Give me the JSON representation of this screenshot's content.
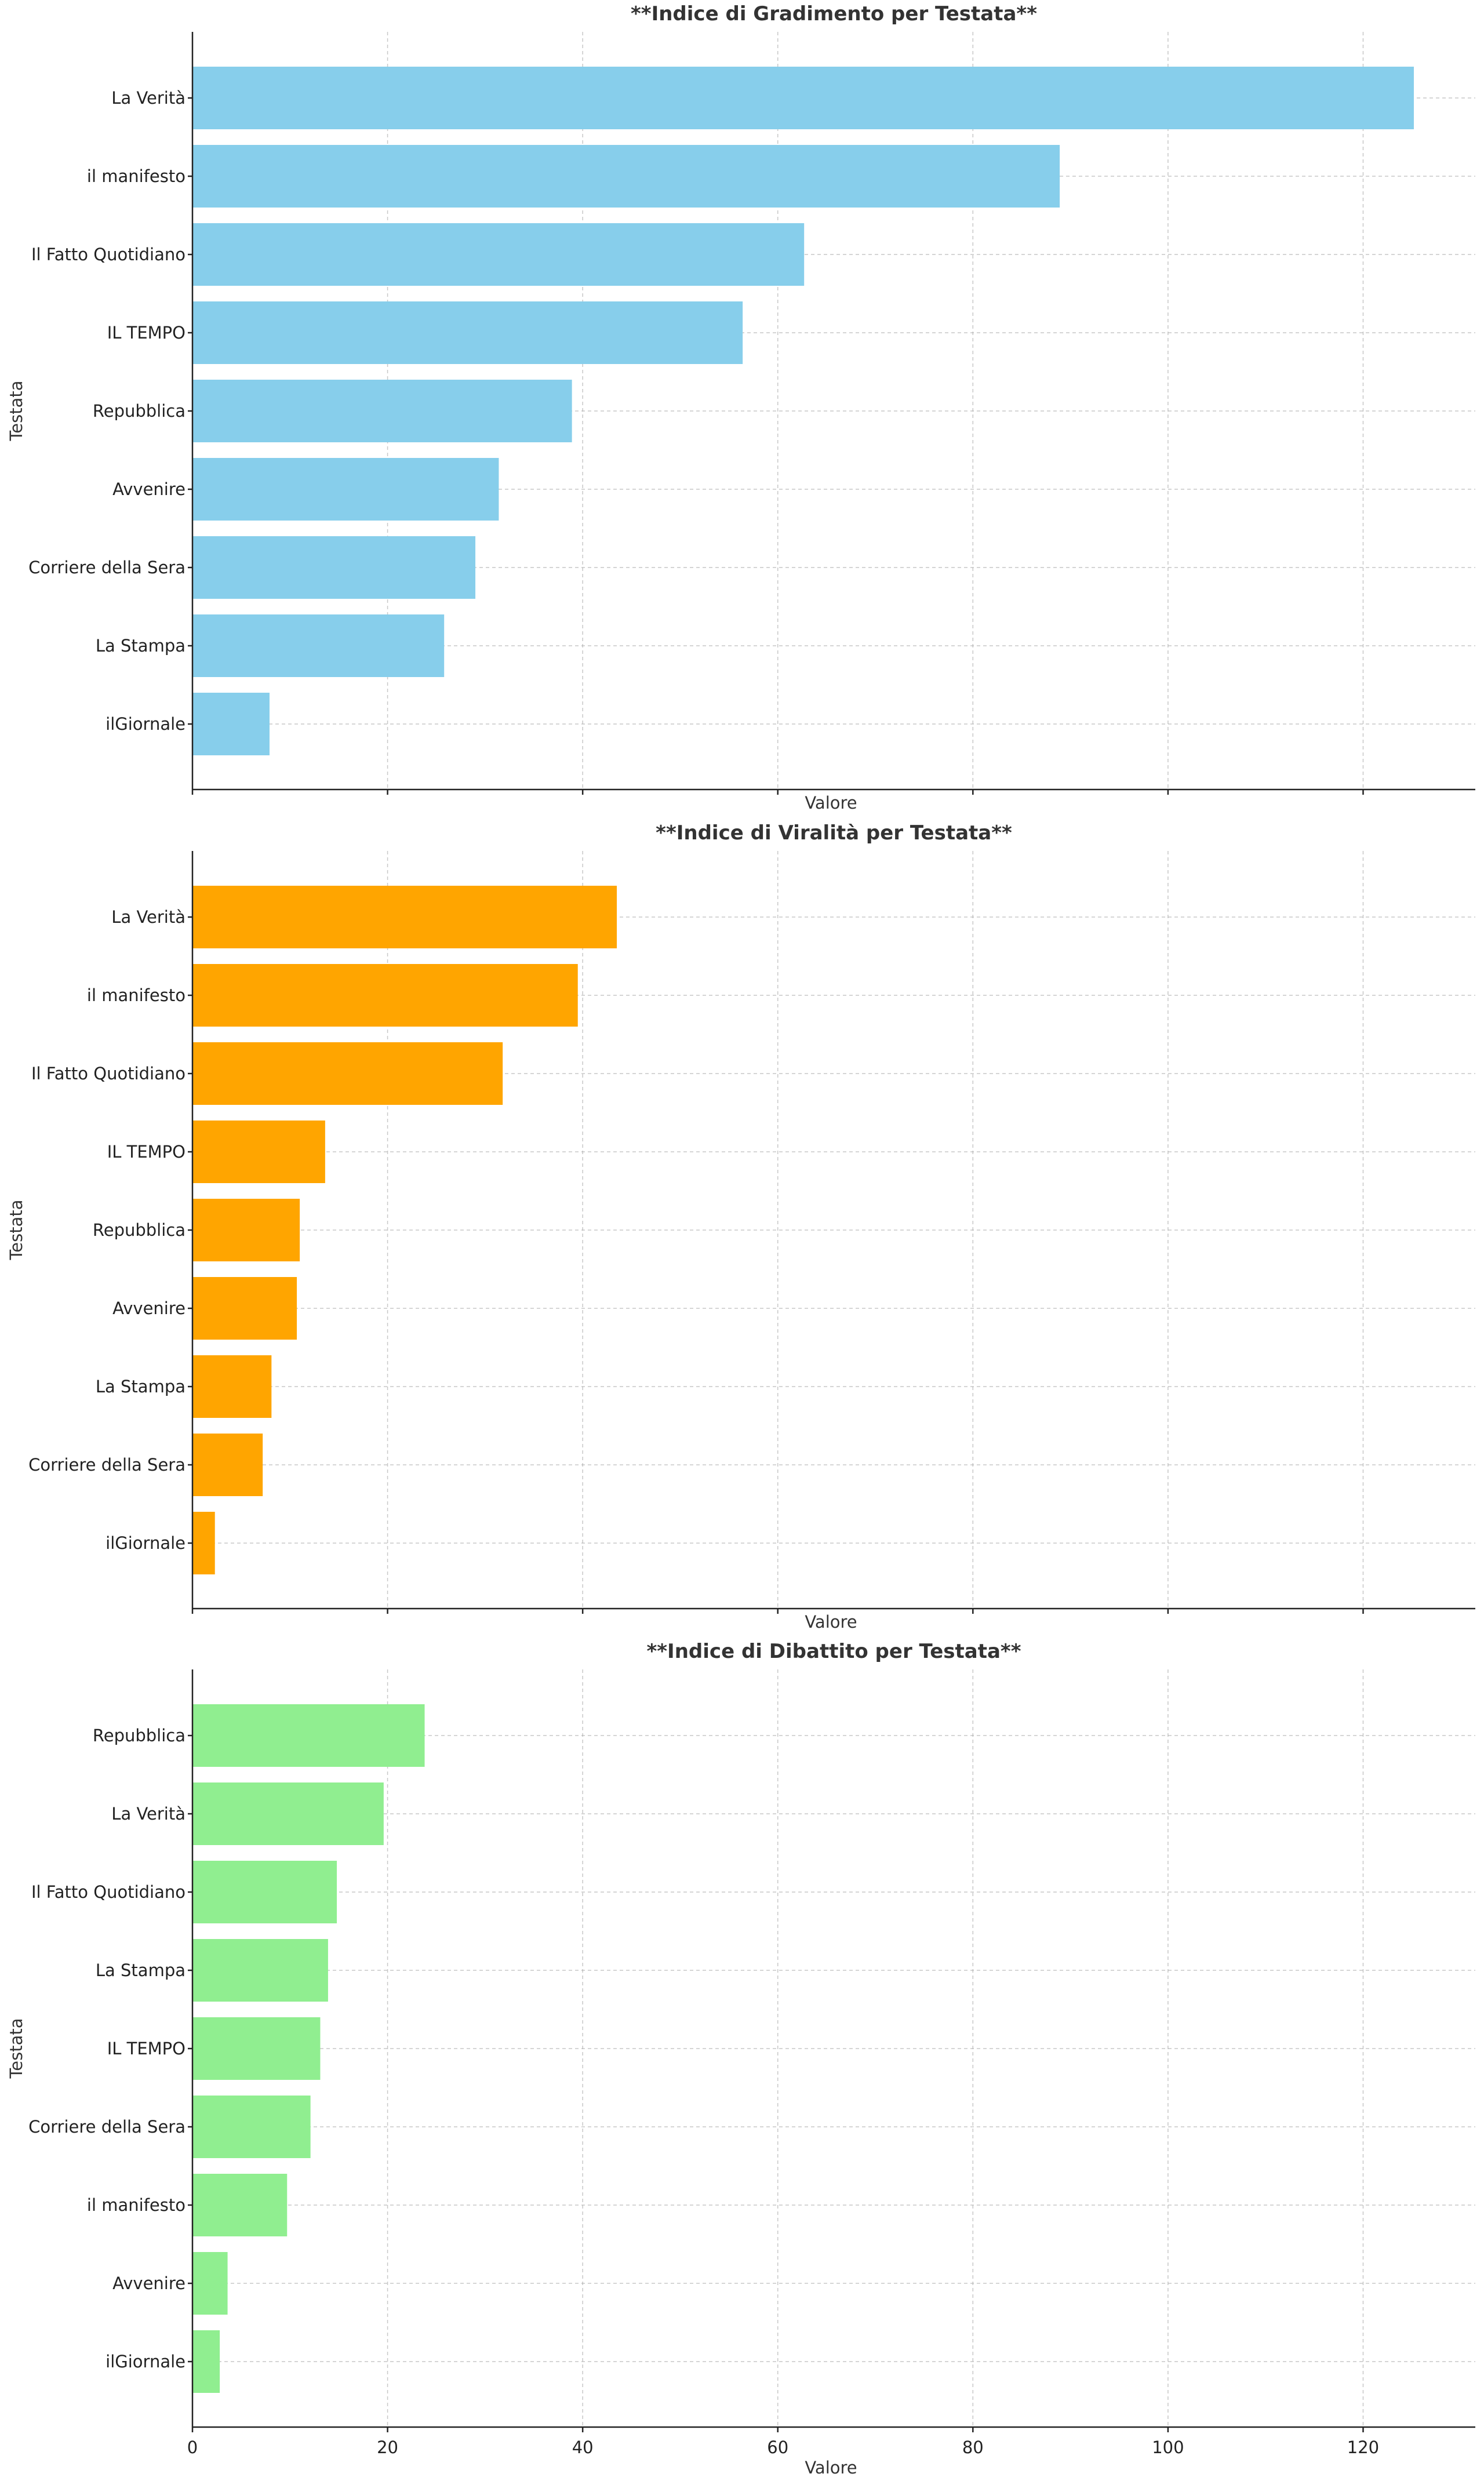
{
  "chart_data": [
    {
      "type": "bar",
      "orientation": "horizontal",
      "title": "**Indice di Gradimento per Testata**",
      "xlabel": "Valore",
      "ylabel": "Testata",
      "xlim": [
        0,
        131.5
      ],
      "grid": true,
      "color": "#87CEEB",
      "categories": [
        "La Verità",
        "il manifesto",
        "Il Fatto Quotidiano",
        "IL TEMPO",
        "Repubblica",
        "Avvenire",
        "Corriere della Sera",
        "La Stampa",
        "ilGiornale"
      ],
      "values": [
        125.2,
        88.9,
        62.7,
        56.4,
        38.9,
        31.4,
        29.0,
        25.8,
        7.9
      ]
    },
    {
      "type": "bar",
      "orientation": "horizontal",
      "title": "**Indice di Viralità per Testata**",
      "xlabel": "Valore",
      "ylabel": "Testata",
      "xlim": [
        0,
        131.5
      ],
      "grid": true,
      "color": "#FFA500",
      "categories": [
        "La Verità",
        "il manifesto",
        "Il Fatto Quotidiano",
        "IL TEMPO",
        "Repubblica",
        "Avvenire",
        "La Stampa",
        "Corriere della Sera",
        "ilGiornale"
      ],
      "values": [
        43.5,
        39.5,
        31.8,
        13.6,
        11.0,
        10.7,
        8.1,
        7.2,
        2.3
      ]
    },
    {
      "type": "bar",
      "orientation": "horizontal",
      "title": "**Indice di Dibattito per Testata**",
      "xlabel": "Valore",
      "ylabel": "Testata",
      "xlim": [
        0,
        131.5
      ],
      "grid": true,
      "color": "#90EE90",
      "categories": [
        "Repubblica",
        "La Verità",
        "Il Fatto Quotidiano",
        "La Stampa",
        "IL TEMPO",
        "Corriere della Sera",
        "il manifesto",
        "Avvenire",
        "ilGiornale"
      ],
      "values": [
        23.8,
        19.6,
        14.8,
        13.9,
        13.1,
        12.1,
        9.7,
        3.6,
        2.8
      ]
    }
  ],
  "x_ticks": [
    "0",
    "20",
    "40",
    "60",
    "80",
    "100",
    "120"
  ],
  "x_tick_values": [
    0,
    20,
    40,
    60,
    80,
    100,
    120
  ]
}
